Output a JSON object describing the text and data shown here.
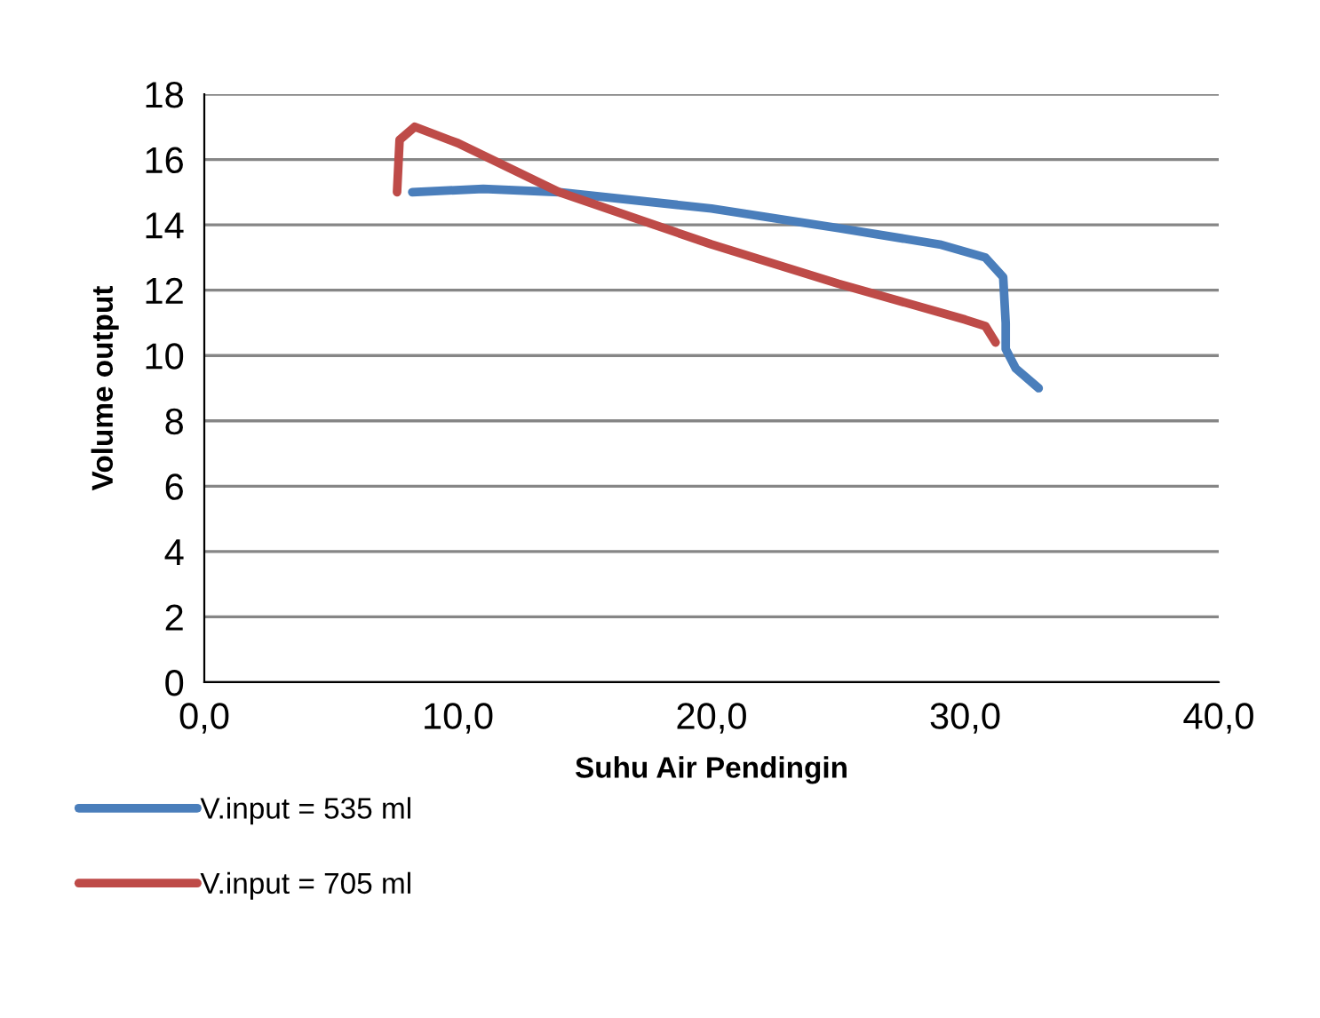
{
  "chart_data": {
    "type": "line",
    "xlabel": "Suhu Air Pendingin",
    "ylabel": "Volume output",
    "xlim": [
      0,
      40
    ],
    "xticks": [
      {
        "value": 0,
        "label": "0,0"
      },
      {
        "value": 10,
        "label": "10,0"
      },
      {
        "value": 20,
        "label": "20,0"
      },
      {
        "value": 30,
        "label": "30,0"
      },
      {
        "value": 40,
        "label": "40,0"
      }
    ],
    "ylim": [
      0,
      18
    ],
    "yticks": [
      0,
      2,
      4,
      6,
      8,
      10,
      12,
      14,
      16,
      18
    ],
    "grid": "y",
    "legend": "bottom left",
    "marker": "none",
    "line_style": "solid",
    "series": [
      {
        "name": "V.input = 535 ml",
        "color": "#4a7ebb",
        "x": [
          8.2,
          11.0,
          14.0,
          20.0,
          25.0,
          29.0,
          30.8,
          31.5,
          31.6,
          31.6,
          32.0,
          32.9
        ],
        "values": [
          15.0,
          15.1,
          15.0,
          14.5,
          13.9,
          13.4,
          13.0,
          12.4,
          11.0,
          10.2,
          9.6,
          9.0
        ]
      },
      {
        "name": "V.input = 705 ml",
        "color": "#be4b48",
        "x": [
          7.6,
          7.7,
          8.3,
          10.0,
          14.0,
          20.0,
          25.0,
          30.0,
          30.8,
          31.2
        ],
        "values": [
          15.0,
          16.6,
          17.0,
          16.5,
          15.0,
          13.4,
          12.2,
          11.1,
          10.9,
          10.4
        ]
      }
    ]
  }
}
